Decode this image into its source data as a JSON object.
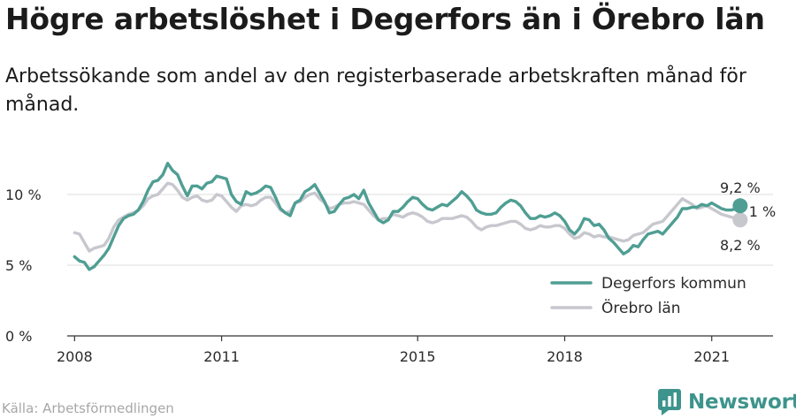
{
  "header": {
    "title": "Högre arbetslöshet i Degerfors än i Örebro län",
    "subtitle": "Arbetssökande som andel av den registerbaserade arbetskraften månad för månad."
  },
  "footer": {
    "source": "Källa: Arbetsförmedlingen",
    "brand": "Newsworthy"
  },
  "colors": {
    "degerfors": "#4f9e93",
    "orebro": "#c7c7ce",
    "brand": "#3d948c"
  },
  "chart_data": {
    "type": "line",
    "x_unit": "year (decimal)",
    "xlim": [
      2007.85,
      2022.25
    ],
    "ylim": [
      0,
      10
    ],
    "y_ticks": [
      {
        "value": 0,
        "label": "0 %"
      },
      {
        "value": 5,
        "label": "5 %"
      },
      {
        "value": 10,
        "label": "10 %"
      }
    ],
    "x_ticks": [
      {
        "value": 2008,
        "label": "2008"
      },
      {
        "value": 2011,
        "label": "2011"
      },
      {
        "value": 2015,
        "label": "2015"
      },
      {
        "value": 2018,
        "label": "2018"
      },
      {
        "value": 2021,
        "label": "2021"
      }
    ],
    "grid": true,
    "legend_position": "bottom-right",
    "series": [
      {
        "name": "Degerfors kommun",
        "color": "#4f9e93",
        "end_label": "9,2 %",
        "points": [
          [
            2008.0,
            5.6
          ],
          [
            2008.1,
            5.3
          ],
          [
            2008.2,
            5.2
          ],
          [
            2008.3,
            4.7
          ],
          [
            2008.4,
            4.9
          ],
          [
            2008.5,
            5.3
          ],
          [
            2008.6,
            5.7
          ],
          [
            2008.7,
            6.2
          ],
          [
            2008.8,
            7.0
          ],
          [
            2008.9,
            7.8
          ],
          [
            2009.0,
            8.3
          ],
          [
            2009.1,
            8.5
          ],
          [
            2009.2,
            8.6
          ],
          [
            2009.3,
            8.9
          ],
          [
            2009.4,
            9.5
          ],
          [
            2009.5,
            10.3
          ],
          [
            2009.6,
            10.9
          ],
          [
            2009.7,
            11.0
          ],
          [
            2009.8,
            11.4
          ],
          [
            2009.9,
            12.2
          ],
          [
            2010.0,
            11.7
          ],
          [
            2010.1,
            11.4
          ],
          [
            2010.2,
            10.6
          ],
          [
            2010.3,
            9.9
          ],
          [
            2010.4,
            10.6
          ],
          [
            2010.5,
            10.6
          ],
          [
            2010.6,
            10.4
          ],
          [
            2010.7,
            10.8
          ],
          [
            2010.8,
            10.9
          ],
          [
            2010.9,
            11.3
          ],
          [
            2011.0,
            11.2
          ],
          [
            2011.1,
            11.1
          ],
          [
            2011.2,
            10.0
          ],
          [
            2011.3,
            9.5
          ],
          [
            2011.4,
            9.3
          ],
          [
            2011.5,
            10.2
          ],
          [
            2011.6,
            10.0
          ],
          [
            2011.7,
            10.1
          ],
          [
            2011.8,
            10.3
          ],
          [
            2011.9,
            10.6
          ],
          [
            2012.0,
            10.5
          ],
          [
            2012.1,
            9.8
          ],
          [
            2012.2,
            9.0
          ],
          [
            2012.3,
            8.7
          ],
          [
            2012.4,
            8.5
          ],
          [
            2012.5,
            9.4
          ],
          [
            2012.6,
            9.6
          ],
          [
            2012.7,
            10.2
          ],
          [
            2012.8,
            10.4
          ],
          [
            2012.9,
            10.7
          ],
          [
            2013.0,
            10.1
          ],
          [
            2013.1,
            9.5
          ],
          [
            2013.2,
            8.7
          ],
          [
            2013.3,
            8.8
          ],
          [
            2013.4,
            9.3
          ],
          [
            2013.5,
            9.7
          ],
          [
            2013.6,
            9.8
          ],
          [
            2013.7,
            10.0
          ],
          [
            2013.8,
            9.7
          ],
          [
            2013.9,
            10.3
          ],
          [
            2014.0,
            9.4
          ],
          [
            2014.1,
            8.8
          ],
          [
            2014.2,
            8.2
          ],
          [
            2014.3,
            8.0
          ],
          [
            2014.4,
            8.2
          ],
          [
            2014.5,
            8.8
          ],
          [
            2014.6,
            8.8
          ],
          [
            2014.7,
            9.1
          ],
          [
            2014.8,
            9.5
          ],
          [
            2014.9,
            9.8
          ],
          [
            2015.0,
            9.7
          ],
          [
            2015.1,
            9.3
          ],
          [
            2015.2,
            9.0
          ],
          [
            2015.3,
            8.9
          ],
          [
            2015.4,
            9.1
          ],
          [
            2015.5,
            9.3
          ],
          [
            2015.6,
            9.2
          ],
          [
            2015.7,
            9.5
          ],
          [
            2015.8,
            9.8
          ],
          [
            2015.9,
            10.2
          ],
          [
            2016.0,
            9.9
          ],
          [
            2016.1,
            9.5
          ],
          [
            2016.2,
            8.9
          ],
          [
            2016.3,
            8.7
          ],
          [
            2016.4,
            8.6
          ],
          [
            2016.5,
            8.6
          ],
          [
            2016.6,
            8.7
          ],
          [
            2016.7,
            9.1
          ],
          [
            2016.8,
            9.4
          ],
          [
            2016.9,
            9.6
          ],
          [
            2017.0,
            9.5
          ],
          [
            2017.1,
            9.2
          ],
          [
            2017.2,
            8.7
          ],
          [
            2017.3,
            8.3
          ],
          [
            2017.4,
            8.3
          ],
          [
            2017.5,
            8.5
          ],
          [
            2017.6,
            8.4
          ],
          [
            2017.7,
            8.5
          ],
          [
            2017.8,
            8.7
          ],
          [
            2017.9,
            8.5
          ],
          [
            2018.0,
            8.1
          ],
          [
            2018.1,
            7.5
          ],
          [
            2018.2,
            7.2
          ],
          [
            2018.3,
            7.6
          ],
          [
            2018.4,
            8.3
          ],
          [
            2018.5,
            8.2
          ],
          [
            2018.6,
            7.8
          ],
          [
            2018.7,
            7.9
          ],
          [
            2018.8,
            7.5
          ],
          [
            2018.9,
            6.9
          ],
          [
            2019.0,
            6.6
          ],
          [
            2019.1,
            6.2
          ],
          [
            2019.2,
            5.8
          ],
          [
            2019.3,
            6.0
          ],
          [
            2019.4,
            6.4
          ],
          [
            2019.5,
            6.3
          ],
          [
            2019.6,
            6.8
          ],
          [
            2019.7,
            7.2
          ],
          [
            2019.8,
            7.3
          ],
          [
            2019.9,
            7.4
          ],
          [
            2020.0,
            7.2
          ],
          [
            2020.1,
            7.6
          ],
          [
            2020.2,
            8.0
          ],
          [
            2020.3,
            8.4
          ],
          [
            2020.4,
            9.0
          ],
          [
            2020.5,
            9.0
          ],
          [
            2020.6,
            9.1
          ],
          [
            2020.7,
            9.1
          ],
          [
            2020.8,
            9.3
          ],
          [
            2020.9,
            9.2
          ],
          [
            2021.0,
            9.4
          ],
          [
            2021.1,
            9.2
          ],
          [
            2021.2,
            9.0
          ],
          [
            2021.3,
            8.9
          ],
          [
            2021.4,
            8.9
          ],
          [
            2021.5,
            9.0
          ],
          [
            2021.58,
            9.2
          ]
        ]
      },
      {
        "name": "Örebro län",
        "color": "#c7c7ce",
        "end_label": "8,2 %",
        "points": [
          [
            2008.0,
            7.3
          ],
          [
            2008.1,
            7.2
          ],
          [
            2008.2,
            6.6
          ],
          [
            2008.3,
            6.0
          ],
          [
            2008.4,
            6.2
          ],
          [
            2008.5,
            6.3
          ],
          [
            2008.6,
            6.4
          ],
          [
            2008.7,
            6.9
          ],
          [
            2008.8,
            7.7
          ],
          [
            2008.9,
            8.2
          ],
          [
            2009.0,
            8.4
          ],
          [
            2009.1,
            8.6
          ],
          [
            2009.2,
            8.7
          ],
          [
            2009.3,
            8.9
          ],
          [
            2009.4,
            9.2
          ],
          [
            2009.5,
            9.7
          ],
          [
            2009.6,
            9.9
          ],
          [
            2009.7,
            10.0
          ],
          [
            2009.8,
            10.4
          ],
          [
            2009.9,
            10.8
          ],
          [
            2010.0,
            10.7
          ],
          [
            2010.1,
            10.3
          ],
          [
            2010.2,
            9.8
          ],
          [
            2010.3,
            9.6
          ],
          [
            2010.4,
            9.8
          ],
          [
            2010.5,
            9.9
          ],
          [
            2010.6,
            9.6
          ],
          [
            2010.7,
            9.5
          ],
          [
            2010.8,
            9.6
          ],
          [
            2010.9,
            10.0
          ],
          [
            2011.0,
            9.9
          ],
          [
            2011.1,
            9.5
          ],
          [
            2011.2,
            9.1
          ],
          [
            2011.3,
            8.8
          ],
          [
            2011.4,
            9.2
          ],
          [
            2011.5,
            9.3
          ],
          [
            2011.6,
            9.2
          ],
          [
            2011.7,
            9.3
          ],
          [
            2011.8,
            9.6
          ],
          [
            2011.9,
            9.8
          ],
          [
            2012.0,
            9.8
          ],
          [
            2012.1,
            9.4
          ],
          [
            2012.2,
            8.9
          ],
          [
            2012.3,
            8.7
          ],
          [
            2012.4,
            8.8
          ],
          [
            2012.5,
            9.4
          ],
          [
            2012.6,
            9.5
          ],
          [
            2012.7,
            9.8
          ],
          [
            2012.8,
            10.0
          ],
          [
            2012.9,
            10.1
          ],
          [
            2013.0,
            9.7
          ],
          [
            2013.1,
            9.4
          ],
          [
            2013.2,
            9.0
          ],
          [
            2013.3,
            9.1
          ],
          [
            2013.4,
            9.3
          ],
          [
            2013.5,
            9.4
          ],
          [
            2013.6,
            9.4
          ],
          [
            2013.7,
            9.5
          ],
          [
            2013.8,
            9.4
          ],
          [
            2013.9,
            9.3
          ],
          [
            2014.0,
            8.9
          ],
          [
            2014.1,
            8.5
          ],
          [
            2014.2,
            8.2
          ],
          [
            2014.3,
            8.3
          ],
          [
            2014.4,
            8.3
          ],
          [
            2014.5,
            8.6
          ],
          [
            2014.6,
            8.5
          ],
          [
            2014.7,
            8.4
          ],
          [
            2014.8,
            8.6
          ],
          [
            2014.9,
            8.7
          ],
          [
            2015.0,
            8.6
          ],
          [
            2015.1,
            8.4
          ],
          [
            2015.2,
            8.1
          ],
          [
            2015.3,
            8.0
          ],
          [
            2015.4,
            8.1
          ],
          [
            2015.5,
            8.3
          ],
          [
            2015.6,
            8.3
          ],
          [
            2015.7,
            8.3
          ],
          [
            2015.8,
            8.4
          ],
          [
            2015.9,
            8.5
          ],
          [
            2016.0,
            8.4
          ],
          [
            2016.1,
            8.1
          ],
          [
            2016.2,
            7.7
          ],
          [
            2016.3,
            7.5
          ],
          [
            2016.4,
            7.7
          ],
          [
            2016.5,
            7.8
          ],
          [
            2016.6,
            7.8
          ],
          [
            2016.7,
            7.9
          ],
          [
            2016.8,
            8.0
          ],
          [
            2016.9,
            8.1
          ],
          [
            2017.0,
            8.1
          ],
          [
            2017.1,
            7.9
          ],
          [
            2017.2,
            7.6
          ],
          [
            2017.3,
            7.5
          ],
          [
            2017.4,
            7.6
          ],
          [
            2017.5,
            7.8
          ],
          [
            2017.6,
            7.7
          ],
          [
            2017.7,
            7.7
          ],
          [
            2017.8,
            7.8
          ],
          [
            2017.9,
            7.8
          ],
          [
            2018.0,
            7.6
          ],
          [
            2018.1,
            7.2
          ],
          [
            2018.2,
            6.9
          ],
          [
            2018.3,
            7.0
          ],
          [
            2018.4,
            7.3
          ],
          [
            2018.5,
            7.2
          ],
          [
            2018.6,
            7.0
          ],
          [
            2018.7,
            7.1
          ],
          [
            2018.8,
            7.0
          ],
          [
            2018.9,
            7.0
          ],
          [
            2019.0,
            6.9
          ],
          [
            2019.1,
            6.8
          ],
          [
            2019.2,
            6.7
          ],
          [
            2019.3,
            6.8
          ],
          [
            2019.4,
            7.1
          ],
          [
            2019.5,
            7.2
          ],
          [
            2019.6,
            7.3
          ],
          [
            2019.7,
            7.6
          ],
          [
            2019.8,
            7.9
          ],
          [
            2019.9,
            8.0
          ],
          [
            2020.0,
            8.1
          ],
          [
            2020.1,
            8.5
          ],
          [
            2020.2,
            8.9
          ],
          [
            2020.3,
            9.3
          ],
          [
            2020.4,
            9.7
          ],
          [
            2020.5,
            9.5
          ],
          [
            2020.6,
            9.3
          ],
          [
            2020.7,
            9.0
          ],
          [
            2020.8,
            9.1
          ],
          [
            2020.9,
            9.2
          ],
          [
            2021.0,
            9.0
          ],
          [
            2021.1,
            8.8
          ],
          [
            2021.2,
            8.6
          ],
          [
            2021.3,
            8.5
          ],
          [
            2021.4,
            8.4
          ],
          [
            2021.5,
            8.3
          ],
          [
            2021.58,
            8.2
          ]
        ]
      }
    ],
    "annotations": [
      {
        "text": "1 %"
      }
    ]
  }
}
